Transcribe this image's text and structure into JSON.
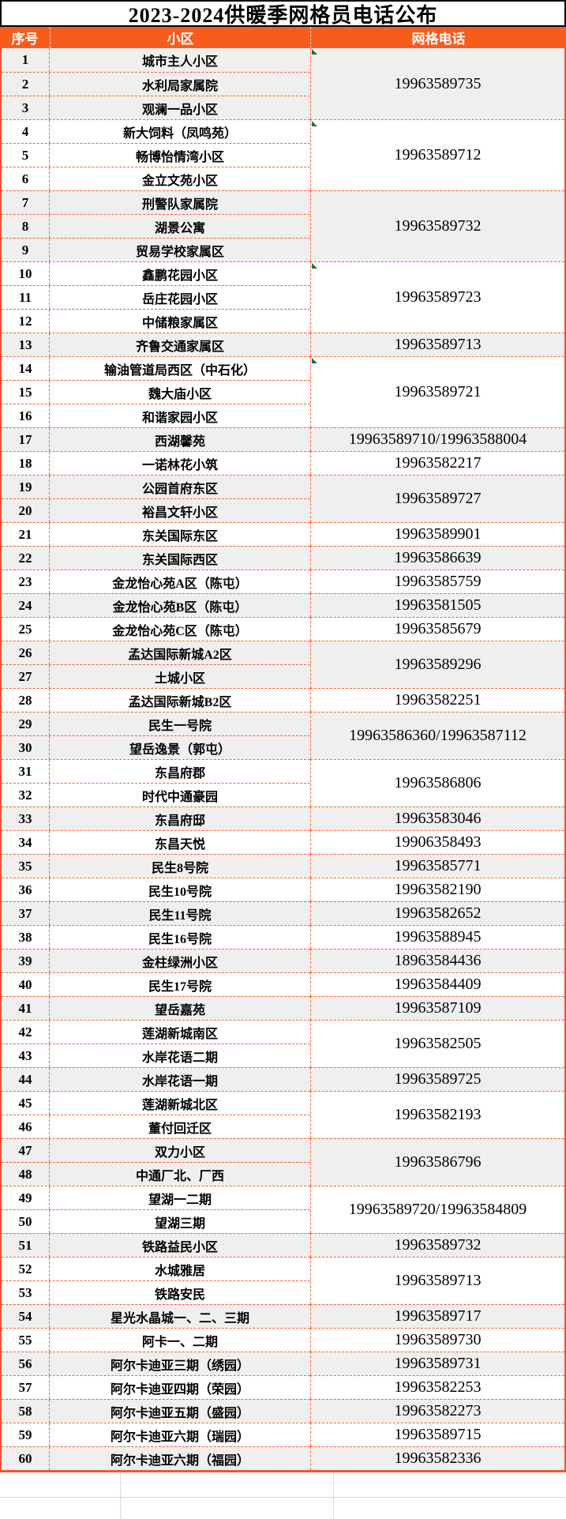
{
  "title": "2023-2024供暖季网格员电话公布",
  "columns": {
    "index": "序号",
    "community": "小区",
    "phone": "网格电话"
  },
  "colors": {
    "header_bg": "#f85c1c",
    "border_orange": "#f4632e",
    "band_gray": "#efefef",
    "marker_green": "#207245",
    "grid_gray": "#d9d9d9",
    "text": "#000000"
  },
  "table": {
    "groups": [
      {
        "phone": "19963589735",
        "marker": true,
        "rows": [
          {
            "no": "1",
            "name": "城市主人小区"
          },
          {
            "no": "2",
            "name": "水利局家属院"
          },
          {
            "no": "3",
            "name": "观澜一品小区"
          }
        ]
      },
      {
        "phone": "19963589712",
        "marker": true,
        "rows": [
          {
            "no": "4",
            "name": "新大饲料（凤鸣苑）"
          },
          {
            "no": "5",
            "name": "畅博怡情湾小区"
          },
          {
            "no": "6",
            "name": "金立文苑小区"
          }
        ]
      },
      {
        "phone": "19963589732",
        "marker": false,
        "rows": [
          {
            "no": "7",
            "name": "刑警队家属院"
          },
          {
            "no": "8",
            "name": "湖景公寓"
          },
          {
            "no": "9",
            "name": "贸易学校家属区"
          }
        ]
      },
      {
        "phone": "19963589723",
        "marker": true,
        "rows": [
          {
            "no": "10",
            "name": "鑫鹏花园小区"
          },
          {
            "no": "11",
            "name": "岳庄花园小区"
          },
          {
            "no": "12",
            "name": "中储粮家属区"
          }
        ]
      },
      {
        "phone": "19963589713",
        "marker": false,
        "rows": [
          {
            "no": "13",
            "name": "齐鲁交通家属区"
          }
        ]
      },
      {
        "phone": "19963589721",
        "marker": true,
        "rows": [
          {
            "no": "14",
            "name": "输油管道局西区（中石化）"
          },
          {
            "no": "15",
            "name": "魏大庙小区"
          },
          {
            "no": "16",
            "name": "和谐家园小区"
          }
        ]
      },
      {
        "phone": "19963589710/19963588004",
        "marker": false,
        "rows": [
          {
            "no": "17",
            "name": "西湖馨苑"
          }
        ]
      },
      {
        "phone": "19963582217",
        "marker": false,
        "rows": [
          {
            "no": "18",
            "name": "一诺林花小筑"
          }
        ]
      },
      {
        "phone": "19963589727",
        "marker": false,
        "rows": [
          {
            "no": "19",
            "name": "公园首府东区"
          },
          {
            "no": "20",
            "name": "裕昌文轩小区"
          }
        ]
      },
      {
        "phone": "19963589901",
        "marker": false,
        "rows": [
          {
            "no": "21",
            "name": "东关国际东区"
          }
        ]
      },
      {
        "phone": "19963586639",
        "marker": false,
        "rows": [
          {
            "no": "22",
            "name": "东关国际西区"
          }
        ]
      },
      {
        "phone": "19963585759",
        "marker": false,
        "rows": [
          {
            "no": "23",
            "name": "金龙怡心苑A区（陈屯）"
          }
        ]
      },
      {
        "phone": "19963581505",
        "marker": false,
        "rows": [
          {
            "no": "24",
            "name": "金龙怡心苑B区（陈屯）"
          }
        ]
      },
      {
        "phone": "19963585679",
        "marker": false,
        "rows": [
          {
            "no": "25",
            "name": "金龙怡心苑C区（陈屯）"
          }
        ]
      },
      {
        "phone": "19963589296",
        "marker": false,
        "rows": [
          {
            "no": "26",
            "name": "孟达国际新城A2区"
          },
          {
            "no": "27",
            "name": "土城小区"
          }
        ]
      },
      {
        "phone": "19963582251",
        "marker": false,
        "rows": [
          {
            "no": "28",
            "name": "孟达国际新城B2区"
          }
        ]
      },
      {
        "phone": "19963586360/19963587112",
        "marker": false,
        "rows": [
          {
            "no": "29",
            "name": "民生一号院"
          },
          {
            "no": "30",
            "name": "望岳逸景（郭屯）"
          }
        ]
      },
      {
        "phone": "19963586806",
        "marker": false,
        "rows": [
          {
            "no": "31",
            "name": "东昌府郡"
          },
          {
            "no": "32",
            "name": "时代中通豪园"
          }
        ]
      },
      {
        "phone": "19963583046",
        "marker": false,
        "rows": [
          {
            "no": "33",
            "name": "东昌府邸"
          }
        ]
      },
      {
        "phone": "19906358493",
        "marker": false,
        "rows": [
          {
            "no": "34",
            "name": "东昌天悦"
          }
        ]
      },
      {
        "phone": "19963585771",
        "marker": false,
        "rows": [
          {
            "no": "35",
            "name": "民生8号院"
          }
        ]
      },
      {
        "phone": "19963582190",
        "marker": false,
        "rows": [
          {
            "no": "36",
            "name": "民生10号院"
          }
        ]
      },
      {
        "phone": "19963582652",
        "marker": false,
        "rows": [
          {
            "no": "37",
            "name": "民生11号院"
          }
        ]
      },
      {
        "phone": "19963588945",
        "marker": false,
        "rows": [
          {
            "no": "38",
            "name": "民生16号院"
          }
        ]
      },
      {
        "phone": "18963584436",
        "marker": false,
        "rows": [
          {
            "no": "39",
            "name": "金柱绿洲小区"
          }
        ]
      },
      {
        "phone": "19963584409",
        "marker": false,
        "rows": [
          {
            "no": "40",
            "name": "民生17号院"
          }
        ]
      },
      {
        "phone": "19963587109",
        "marker": false,
        "rows": [
          {
            "no": "41",
            "name": "望岳嘉苑"
          }
        ]
      },
      {
        "phone": "19963582505",
        "marker": false,
        "rows": [
          {
            "no": "42",
            "name": "莲湖新城南区"
          },
          {
            "no": "43",
            "name": "水岸花语二期"
          }
        ]
      },
      {
        "phone": "19963589725",
        "marker": false,
        "rows": [
          {
            "no": "44",
            "name": "水岸花语一期"
          }
        ]
      },
      {
        "phone": "19963582193",
        "marker": false,
        "rows": [
          {
            "no": "45",
            "name": "莲湖新城北区"
          },
          {
            "no": "46",
            "name": "董付回迁区"
          }
        ]
      },
      {
        "phone": "19963586796",
        "marker": false,
        "rows": [
          {
            "no": "47",
            "name": "双力小区"
          },
          {
            "no": "48",
            "name": "中通厂北、厂西"
          }
        ]
      },
      {
        "phone": "19963589720/19963584809",
        "marker": false,
        "rows": [
          {
            "no": "49",
            "name": "望湖一二期"
          },
          {
            "no": "50",
            "name": "望湖三期"
          }
        ]
      },
      {
        "phone": "19963589732",
        "marker": false,
        "rows": [
          {
            "no": "51",
            "name": "铁路益民小区"
          }
        ]
      },
      {
        "phone": "19963589713",
        "marker": false,
        "rows": [
          {
            "no": "52",
            "name": "水城雅居"
          },
          {
            "no": "53",
            "name": "铁路安民"
          }
        ]
      },
      {
        "phone": "19963589717",
        "marker": false,
        "rows": [
          {
            "no": "54",
            "name": "星光水晶城一、二、三期"
          }
        ]
      },
      {
        "phone": "19963589730",
        "marker": false,
        "rows": [
          {
            "no": "55",
            "name": "阿卡一、二期"
          }
        ]
      },
      {
        "phone": "19963589731",
        "marker": false,
        "rows": [
          {
            "no": "56",
            "name": "阿尔卡迪亚三期（绣园）"
          }
        ]
      },
      {
        "phone": "19963582253",
        "marker": false,
        "rows": [
          {
            "no": "57",
            "name": "阿尔卡迪亚四期（荣园）"
          }
        ]
      },
      {
        "phone": "19963582273",
        "marker": false,
        "rows": [
          {
            "no": "58",
            "name": "阿尔卡迪亚五期（盛园）"
          }
        ]
      },
      {
        "phone": "19963589715",
        "marker": false,
        "rows": [
          {
            "no": "59",
            "name": "阿尔卡迪亚六期（瑞园）"
          }
        ]
      },
      {
        "phone": "19963582336",
        "marker": false,
        "rows": [
          {
            "no": "60",
            "name": "阿尔卡迪亚六期（福园）"
          }
        ]
      }
    ]
  }
}
